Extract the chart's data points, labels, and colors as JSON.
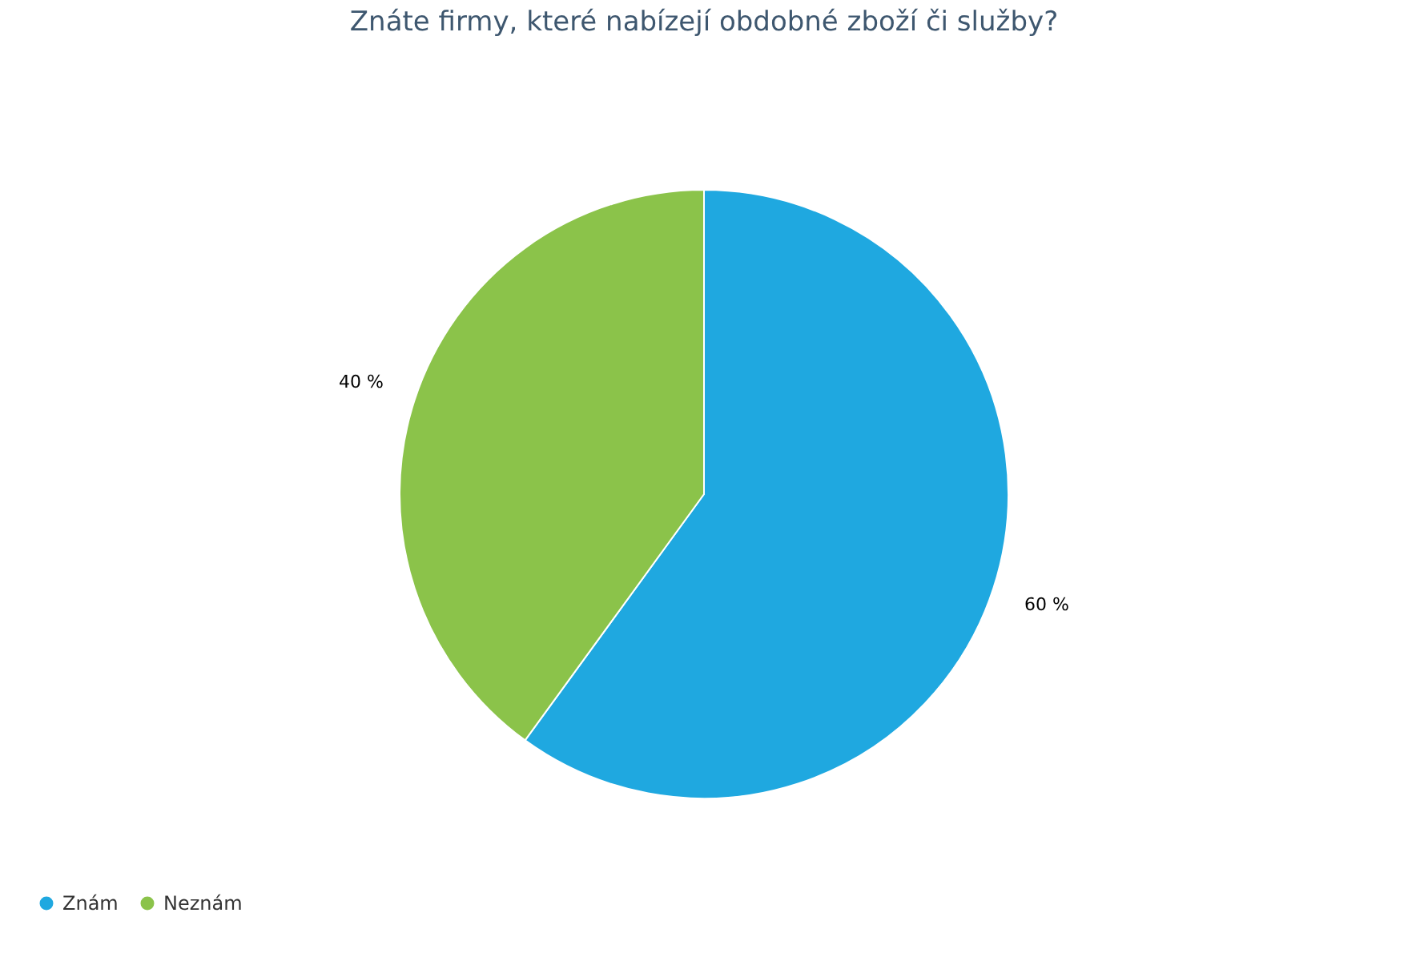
{
  "chart_data": {
    "type": "pie",
    "title": "Znáte firmy, které nabízejí obdobné zboží či služby?",
    "categories": [
      "Znám",
      "Neznám"
    ],
    "values": [
      60,
      40
    ],
    "colors": [
      "#1fa8e0",
      "#8bc34a"
    ],
    "value_labels": [
      "60 %",
      "40 %"
    ],
    "legend": "bottom left"
  }
}
